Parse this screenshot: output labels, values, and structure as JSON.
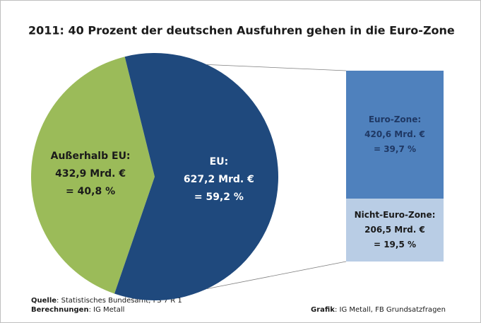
{
  "chart_data": [
    {
      "type": "pie",
      "title": "2011: 40 Prozent der deutschen Ausfuhren gehen in die Euro-Zone",
      "categories": [
        "Außerhalb EU:",
        "EU:"
      ],
      "values": [
        432.9,
        627.2
      ],
      "value_labels": [
        "432,9 Mrd. €",
        "627,2 Mrd. €"
      ],
      "percent_labels": [
        "= 40,8 %",
        "= 59,2 %"
      ],
      "colors": [
        "#9bbb59",
        "#1f497d"
      ],
      "label_colors": [
        "#1a1a1a",
        "#ffffff"
      ]
    },
    {
      "type": "stacked-bar",
      "categories": [
        "Euro-Zone:",
        "Nicht-Euro-Zone:"
      ],
      "values": [
        420.6,
        206.5
      ],
      "value_labels": [
        "420,6 Mrd. €",
        "206,5 Mrd. €"
      ],
      "percent_labels": [
        "= 39,7 %",
        "= 19,5 %"
      ],
      "colors": [
        "#4f81bd",
        "#b9cde5"
      ],
      "label_colors": [
        "#1f3864",
        "#1a1a1a"
      ]
    }
  ],
  "footer": {
    "source_label": "Quelle",
    "source_text": ": Statistisches Bundesamt, FS 7 R 1",
    "calc_label": "Berechnungen",
    "calc_text": ": IG Metall",
    "graphic_label": "Grafik",
    "graphic_text": ": IG Metall, FB Grundsatzfragen"
  }
}
